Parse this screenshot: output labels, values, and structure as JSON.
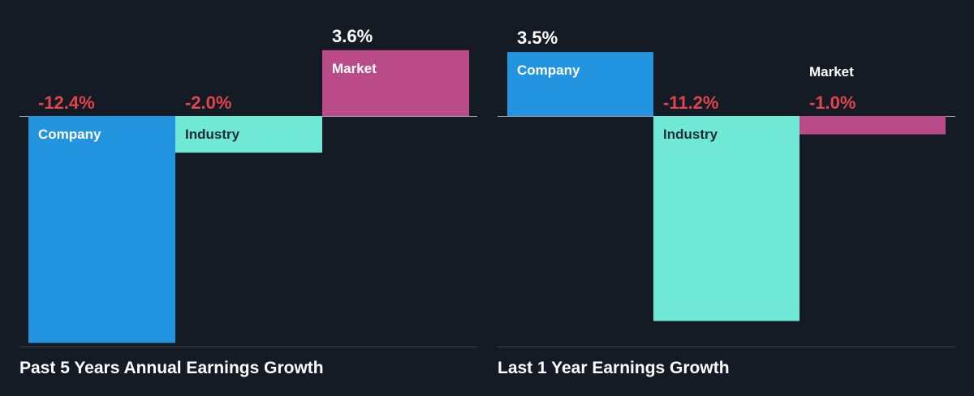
{
  "colors": {
    "background": "#151b24",
    "company": "#2394e0",
    "industry": "#6fe8d5",
    "market": "#bb4a88",
    "negative_label": "#e0444c",
    "positive_label": "#ffffff",
    "axis": "#9aa0a8"
  },
  "chart_data": [
    {
      "type": "bar",
      "title": "Past 5 Years Annual Earnings Growth",
      "categories": [
        "Company",
        "Industry",
        "Market"
      ],
      "values": [
        -12.4,
        -2.0,
        3.6
      ],
      "value_labels": [
        "-12.4%",
        "-2.0%",
        "3.6%"
      ],
      "unit": "%",
      "ylim": [
        -13.5,
        4.0
      ],
      "grid": false,
      "legend": "none"
    },
    {
      "type": "bar",
      "title": "Last 1 Year Earnings Growth",
      "categories": [
        "Company",
        "Industry",
        "Market"
      ],
      "values": [
        3.5,
        -11.2,
        -1.0
      ],
      "value_labels": [
        "3.5%",
        "-11.2%",
        "-1.0%"
      ],
      "unit": "%",
      "ylim": [
        -11.9,
        4.0
      ],
      "grid": false,
      "legend": "none"
    }
  ]
}
